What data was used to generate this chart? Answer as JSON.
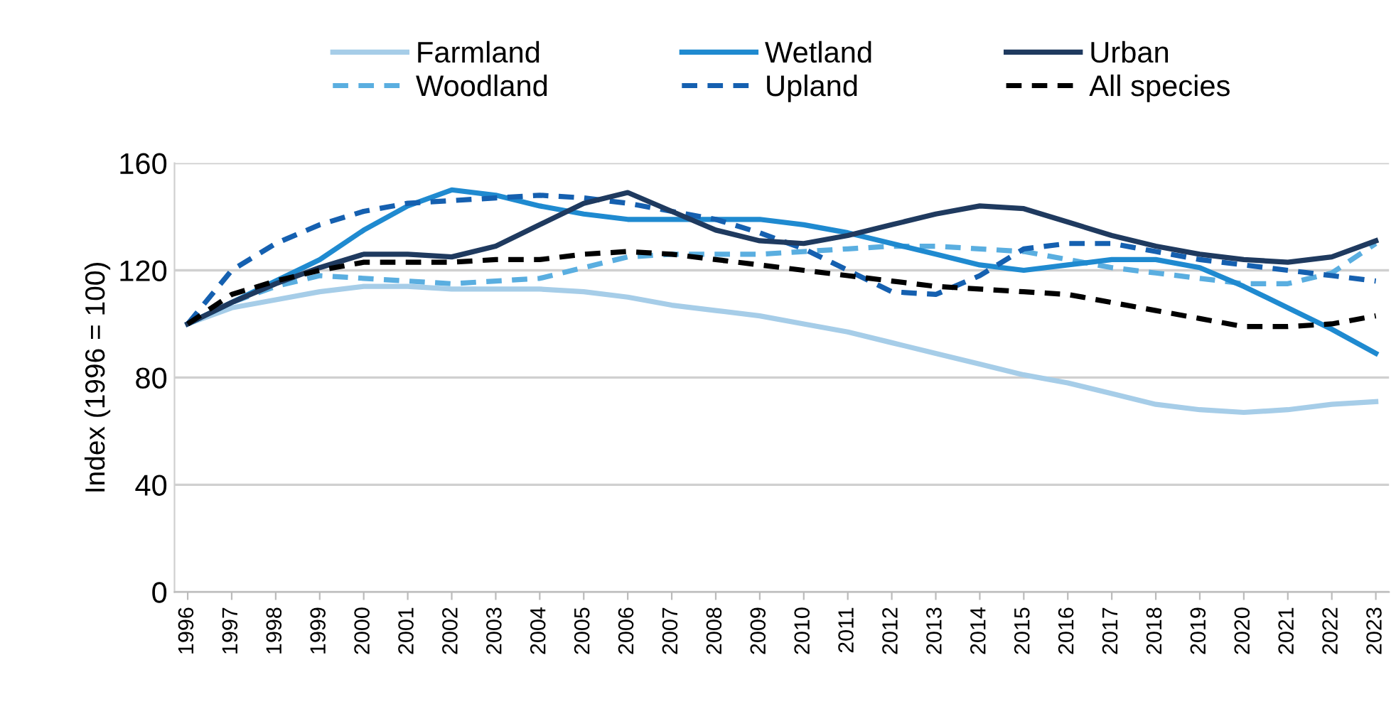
{
  "chart_data": {
    "type": "line",
    "ylabel": "Index (1996 = 100)",
    "categories": [
      "1996",
      "1997",
      "1998",
      "1999",
      "2000",
      "2001",
      "2002",
      "2003",
      "2004",
      "2005",
      "2006",
      "2007",
      "2008",
      "2009",
      "2010",
      "2011",
      "2012",
      "2013",
      "2014",
      "2015",
      "2016",
      "2017",
      "2018",
      "2019",
      "2020",
      "2021",
      "2022",
      "2023"
    ],
    "ylim": [
      0,
      160
    ],
    "yticks": [
      0,
      40,
      80,
      120,
      160
    ],
    "grid": "y",
    "legend": "top",
    "marker": "none",
    "series": [
      {
        "name": "Farmland",
        "color": "#a6cde8",
        "line_style": "solid",
        "values": [
          100,
          106,
          109,
          112,
          114,
          114,
          113,
          113,
          113,
          112,
          110,
          107,
          105,
          103,
          100,
          97,
          93,
          89,
          85,
          81,
          78,
          74,
          70,
          68,
          67,
          68,
          70,
          71
        ]
      },
      {
        "name": "Woodland",
        "color": "#5aaee0",
        "line_style": "dashed",
        "values": [
          100,
          108,
          114,
          118,
          117,
          116,
          115,
          116,
          117,
          121,
          125,
          126,
          126,
          126,
          127,
          128,
          129,
          129,
          128,
          127,
          124,
          121,
          119,
          117,
          115,
          115,
          119,
          130
        ]
      },
      {
        "name": "Wetland",
        "color": "#1f8ad0",
        "line_style": "solid",
        "values": [
          100,
          108,
          116,
          124,
          135,
          144,
          150,
          148,
          144,
          141,
          139,
          139,
          139,
          139,
          137,
          134,
          130,
          126,
          122,
          120,
          122,
          124,
          124,
          121,
          114,
          106,
          98,
          89
        ]
      },
      {
        "name": "Upland",
        "color": "#1560b0",
        "line_style": "dashed",
        "values": [
          100,
          120,
          130,
          137,
          142,
          145,
          146,
          147,
          148,
          147,
          145,
          142,
          139,
          134,
          128,
          120,
          112,
          111,
          118,
          128,
          130,
          130,
          127,
          124,
          122,
          120,
          118,
          116
        ]
      },
      {
        "name": "Urban",
        "color": "#1f3a5f",
        "line_style": "solid",
        "values": [
          100,
          108,
          115,
          121,
          126,
          126,
          125,
          129,
          137,
          145,
          149,
          142,
          135,
          131,
          130,
          133,
          137,
          141,
          144,
          143,
          138,
          133,
          129,
          126,
          124,
          123,
          125,
          131
        ]
      },
      {
        "name": "All species",
        "color": "#000000",
        "line_style": "dashed",
        "values": [
          100,
          111,
          116,
          120,
          123,
          123,
          123,
          124,
          124,
          126,
          127,
          126,
          124,
          122,
          120,
          118,
          116,
          114,
          113,
          112,
          111,
          108,
          105,
          102,
          99,
          99,
          100,
          103
        ]
      }
    ]
  }
}
